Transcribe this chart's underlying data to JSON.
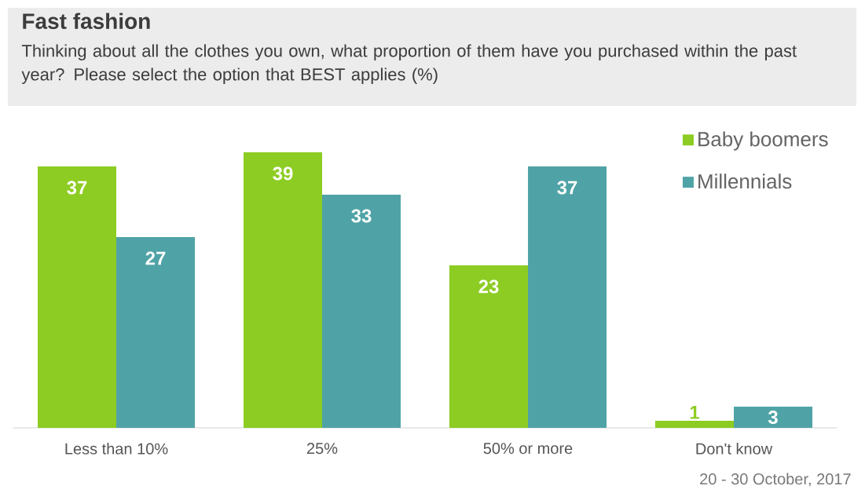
{
  "chart_data": {
    "type": "bar",
    "title": "Fast fashion",
    "subtitle": "Thinking about all the clothes you own, what proportion of them have you purchased within the past year? Please select the option that BEST applies (%)",
    "categories": [
      "Less than 10%",
      "25%",
      "50% or more",
      "Don't know"
    ],
    "series": [
      {
        "name": "Baby boomers",
        "color": "#8dcc22",
        "values": [
          37,
          39,
          23,
          1
        ]
      },
      {
        "name": "Millennials",
        "color": "#4fa3a6",
        "values": [
          27,
          33,
          37,
          3
        ]
      }
    ],
    "data_labels": true,
    "legend": "top right",
    "annotations": [
      "20 - 30 October, 2017"
    ]
  }
}
